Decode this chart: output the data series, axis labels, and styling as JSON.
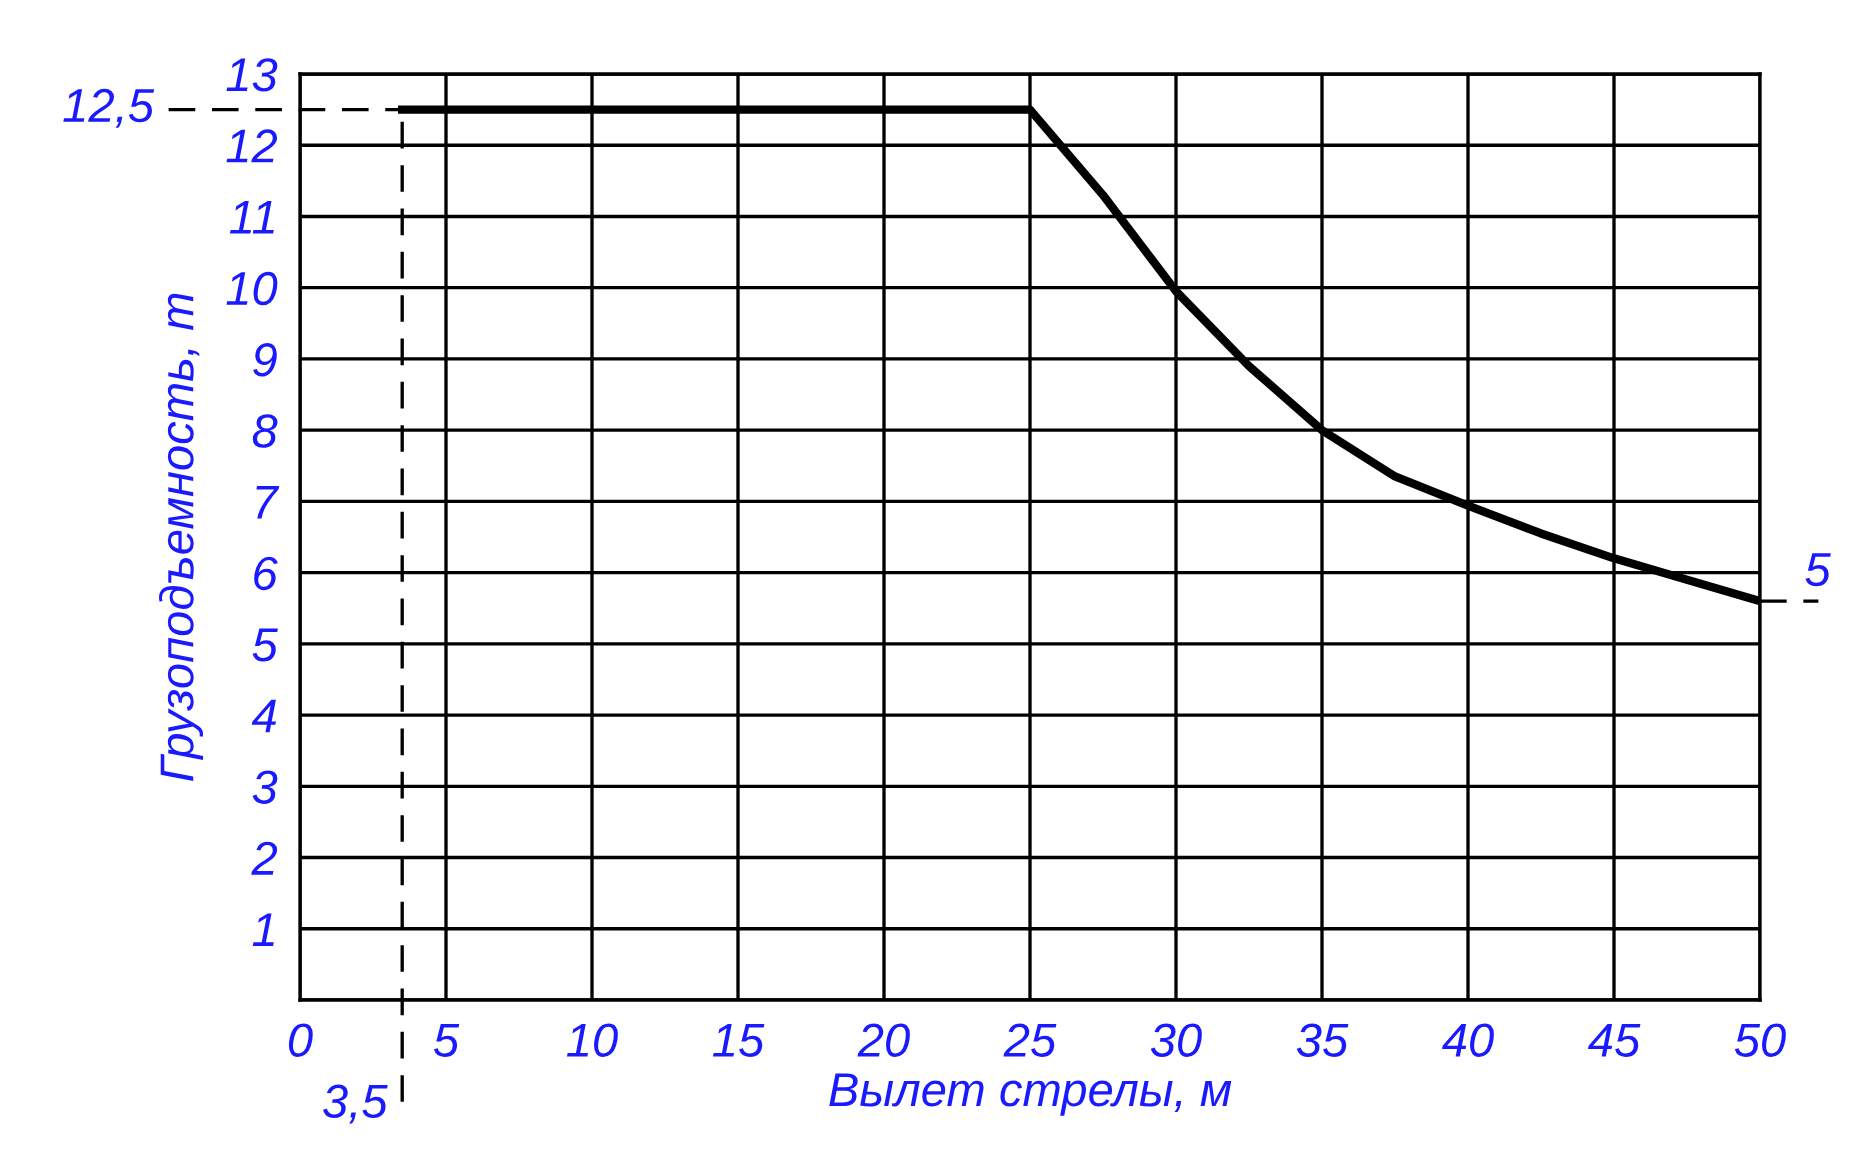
{
  "chart_data": {
    "type": "line",
    "xlabel": "Вылет стрелы, м",
    "ylabel": "Грузоподъемность, т",
    "x": [
      3.5,
      25,
      27.5,
      30,
      32.5,
      35,
      37.5,
      40,
      42.5,
      45,
      47.5,
      50
    ],
    "series": [
      {
        "color": "#000000",
        "values": [
          12.5,
          12.5,
          11.3,
          9.95,
          8.9,
          8.0,
          7.35,
          6.94,
          6.55,
          6.2,
          5.9,
          5.6
        ]
      }
    ],
    "xlim": [
      0,
      50
    ],
    "ylim": [
      0,
      13
    ],
    "xticks": [
      0,
      5,
      10,
      15,
      20,
      25,
      30,
      35,
      40,
      45,
      50
    ],
    "yticks": [
      {
        "value": 0,
        "label": null
      },
      1,
      2,
      3,
      4,
      5,
      6,
      7,
      8,
      9,
      10,
      11,
      12,
      13
    ],
    "ref_lines": [
      {
        "axis": "y",
        "value": 12.5,
        "label": "12,5",
        "line_style": "dashed",
        "color": "#000000"
      },
      {
        "axis": "x",
        "value": 3.5,
        "label": "3,5",
        "line_style": "dashed",
        "color": "#000000"
      }
    ],
    "annotations": [
      {
        "text": "5",
        "x": 50,
        "y": 5.6
      }
    ],
    "grid": true,
    "marker": "none",
    "line_style": "solid"
  }
}
